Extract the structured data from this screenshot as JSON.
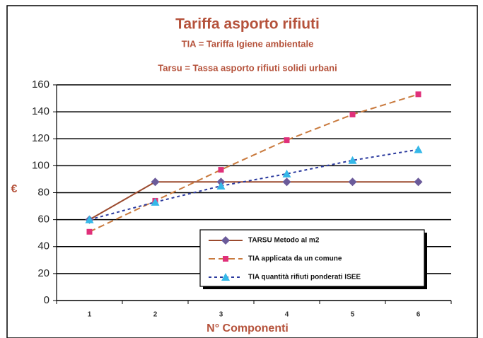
{
  "chart_data": {
    "type": "line",
    "title": "Tariffa asporto rifiuti",
    "subtitle": [
      "TIA = Tariffa Igiene ambientale",
      "Tarsu = Tassa asporto rifiuti solidi urbani"
    ],
    "x_label": "N° Componenti",
    "y_label": "€",
    "categories": [
      "1",
      "2",
      "3",
      "4",
      "5",
      "6"
    ],
    "series": [
      {
        "name": "TARSU Metodo al m2",
        "color": "#6b5b9a",
        "line_color": "#9b4a2e",
        "marker": "diamond",
        "dash": "none",
        "values": [
          60,
          88,
          88,
          88,
          88,
          88
        ]
      },
      {
        "name": "TIA applicata da un comune",
        "color": "#e0307a",
        "line_color": "#c97a3e",
        "marker": "square",
        "dash": "9 5",
        "values": [
          51,
          74,
          97,
          119,
          138,
          153
        ]
      },
      {
        "name": "TIA quantità rifiuti ponderati ISEE",
        "color": "#35b8e8",
        "line_color": "#2b3a9e",
        "marker": "triangle",
        "dash": "4 4",
        "values": [
          60,
          73,
          85,
          94,
          104,
          112
        ]
      }
    ],
    "ylim": [
      0,
      160
    ],
    "yticks": [
      0,
      20,
      40,
      60,
      80,
      100,
      120,
      140,
      160
    ],
    "grid": true
  }
}
